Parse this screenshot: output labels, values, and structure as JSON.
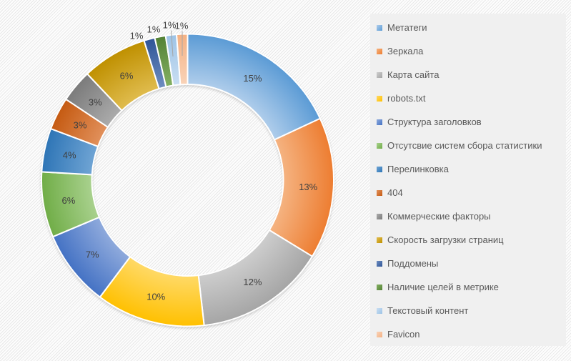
{
  "chart_data": {
    "type": "pie",
    "subtype": "donut",
    "title": "",
    "legend_position": "right",
    "values_sum": 83,
    "label_format": "percent",
    "series": [
      {
        "name": "Метатеги",
        "value": 15,
        "label": "15%",
        "color": "#5B9BD5",
        "color_light": "#AFCDEB"
      },
      {
        "name": "Зеркала",
        "value": 13,
        "label": "13%",
        "color": "#ED7D31",
        "color_light": "#F5B381"
      },
      {
        "name": "Карта сайта",
        "value": 12,
        "label": "12%",
        "color": "#A5A5A5",
        "color_light": "#CDCDCD"
      },
      {
        "name": "robots.txt",
        "value": 10,
        "label": "10%",
        "color": "#FFC000",
        "color_light": "#FFD966"
      },
      {
        "name": "Структура заголовков",
        "value": 7,
        "label": "7%",
        "color": "#4472C4",
        "color_light": "#8FAADC"
      },
      {
        "name": "Отсутсвие систем сбора статистики",
        "value": 6,
        "label": "6%",
        "color": "#70AD47",
        "color_light": "#A9D18E"
      },
      {
        "name": "Перелинковка",
        "value": 4,
        "label": "4%",
        "color": "#2E75B6",
        "color_light": "#6FA4D4"
      },
      {
        "name": "404",
        "value": 3,
        "label": "3%",
        "color": "#C55A11",
        "color_light": "#E1905B"
      },
      {
        "name": "Коммерческие факторы",
        "value": 3,
        "label": "3%",
        "color": "#7B7B7B",
        "color_light": "#ABABAB"
      },
      {
        "name": "Скорость загрузки страниц",
        "value": 6,
        "label": "6%",
        "color": "#BF9000",
        "color_light": "#E0BC4E"
      },
      {
        "name": "Поддомены",
        "value": 1,
        "label": "1%",
        "color": "#2F5597",
        "color_light": "#6E8DC0"
      },
      {
        "name": "Наличие целей в метрике",
        "value": 1,
        "label": "1%",
        "color": "#538135",
        "color_light": "#84B062"
      },
      {
        "name": "Текстовый контент",
        "value": 1,
        "label": "1%",
        "color": "#9DC3E6",
        "color_light": "#C9DEF2"
      },
      {
        "name": "Favicon",
        "value": 1,
        "label": "1%",
        "color": "#F4B183",
        "color_light": "#F9D3B8"
      }
    ]
  },
  "style": {
    "background": "#fdfdfd",
    "hatch_line_color": "#e8e8e8",
    "legend_background": "#f0f0f0",
    "legend_text_color": "#595959",
    "data_label_color": "#404040",
    "leader_line_color": "#a6a6a6",
    "slice_separator_color": "#ffffff"
  }
}
